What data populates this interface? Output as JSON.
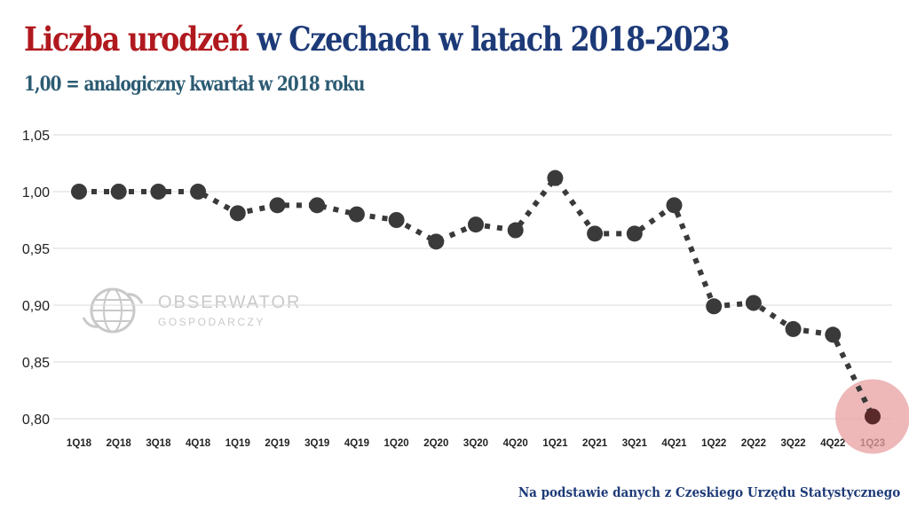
{
  "header": {
    "title_red": "Liczba urodzeń",
    "title_navy": " w Czechach w latach 2018-2023",
    "subtitle": "1,00 = analogiczny kwartał w 2018 roku"
  },
  "watermark": {
    "line1": "OBSERWATOR",
    "line2": "GOSPODARCZY"
  },
  "footer": {
    "source": "Na podstawie danych  z Czeskiego Urzędu Statystycznego"
  },
  "colors": {
    "title_red": "#b0191e",
    "title_navy": "#1d3a78",
    "subtitle": "#2b5a72",
    "series": "#3a3a3a",
    "highlight": "#e8a0a0"
  },
  "chart_data": {
    "type": "line",
    "title": "Liczba urodzeń w Czechach w latach 2018-2023",
    "xlabel": "",
    "ylabel": "",
    "ylim": [
      0.8,
      1.05
    ],
    "yticks": [
      1.05,
      1.0,
      0.95,
      0.9,
      0.85,
      0.8
    ],
    "ytick_labels": [
      "1,05",
      "1,00",
      "0,95",
      "0,90",
      "0,85",
      "0,80"
    ],
    "grid": true,
    "categories": [
      "1Q18",
      "2Q18",
      "3Q18",
      "4Q18",
      "1Q19",
      "2Q19",
      "3Q19",
      "4Q19",
      "1Q20",
      "2Q20",
      "3Q20",
      "4Q20",
      "1Q21",
      "2Q21",
      "3Q21",
      "4Q21",
      "1Q22",
      "2Q22",
      "3Q22",
      "4Q22",
      "1Q23"
    ],
    "series": [
      {
        "name": "Liczba urodzeń",
        "style": "dotted",
        "values": [
          1.0,
          1.0,
          1.0,
          1.0,
          0.981,
          0.988,
          0.988,
          0.98,
          0.975,
          0.956,
          0.971,
          0.966,
          1.012,
          0.963,
          0.963,
          0.988,
          0.899,
          0.902,
          0.879,
          0.874,
          0.802
        ]
      }
    ],
    "highlight": {
      "category": "1Q23"
    }
  }
}
